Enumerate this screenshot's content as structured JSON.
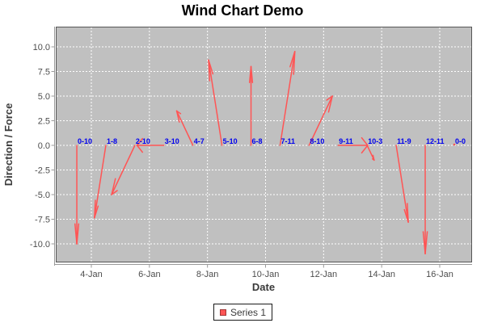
{
  "chart_data": {
    "type": "scatter",
    "variant": "wind-vectors",
    "title": "Wind Chart Demo",
    "xlabel": "Date",
    "ylabel": "Direction / Force",
    "x_tick_labels": [
      "4-Jan",
      "6-Jan",
      "8-Jan",
      "10-Jan",
      "12-Jan",
      "14-Jan",
      "16-Jan"
    ],
    "x_tick_days": [
      4,
      6,
      8,
      10,
      12,
      14,
      16
    ],
    "y_tick_labels": [
      "10.0",
      "7.5",
      "5.0",
      "2.5",
      "0.0",
      "-2.5",
      "-5.0",
      "-7.5",
      "-10.0"
    ],
    "y_tick_values": [
      10,
      7.5,
      5,
      2.5,
      0,
      -2.5,
      -5,
      -7.5,
      -10
    ],
    "ylim": [
      -12,
      12
    ],
    "grid": true,
    "legend": {
      "position": "bottom",
      "entries": [
        {
          "label": "Series 1",
          "color": "#ff5555"
        }
      ]
    },
    "series": [
      {
        "name": "Series 1",
        "points": [
          {
            "day": 3,
            "date": "3-Jan",
            "direction": 0,
            "force": 10,
            "label": "0-10"
          },
          {
            "day": 4,
            "date": "4-Jan",
            "direction": 1,
            "force": 8.5,
            "label": "1-8"
          },
          {
            "day": 5,
            "date": "5-Jan",
            "direction": 2,
            "force": 10,
            "label": "2-10"
          },
          {
            "day": 6,
            "date": "6-Jan",
            "direction": 3,
            "force": 10,
            "label": "3-10"
          },
          {
            "day": 7,
            "date": "7-Jan",
            "direction": 4,
            "force": 7,
            "label": "4-7"
          },
          {
            "day": 8,
            "date": "8-Jan",
            "direction": 5,
            "force": 10,
            "label": "5-10"
          },
          {
            "day": 9,
            "date": "9-Jan",
            "direction": 6,
            "force": 8,
            "label": "6-8"
          },
          {
            "day": 10,
            "date": "10-Jan",
            "direction": 7,
            "force": 11,
            "label": "7-11"
          },
          {
            "day": 11,
            "date": "11-Jan",
            "direction": 8,
            "force": 10,
            "label": "8-10"
          },
          {
            "day": 12,
            "date": "12-Jan",
            "direction": 9,
            "force": 11,
            "label": "9-11"
          },
          {
            "day": 13,
            "date": "13-Jan",
            "direction": 10,
            "force": 3,
            "label": "10-3"
          },
          {
            "day": 14,
            "date": "14-Jan",
            "direction": 11,
            "force": 9,
            "label": "11-9"
          },
          {
            "day": 15,
            "date": "15-Jan",
            "direction": 12,
            "force": 11,
            "label": "12-11"
          },
          {
            "day": 16,
            "date": "16-Jan",
            "direction": 0,
            "force": 0,
            "label": "0-0"
          }
        ]
      }
    ]
  },
  "colors": {
    "series": "#ff5555",
    "plot_background": "#c0c0c0",
    "gridline": "#ffffff",
    "plot_border": "#565656",
    "axis_line": "#9a9a9a",
    "tick_text": "#4d4d4d",
    "wind_label": "#0000ee"
  }
}
